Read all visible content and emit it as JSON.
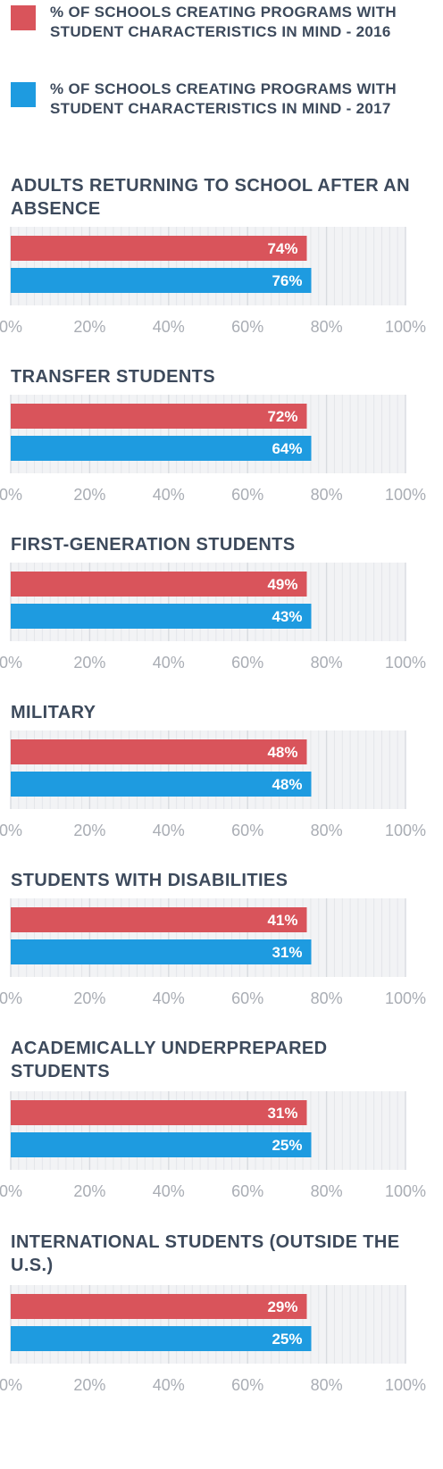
{
  "legend": [
    {
      "label": "% OF SCHOOLS CREATING PROGRAMS WITH STUDENT CHARACTERISTICS IN MIND - 2016",
      "color": "#d9545b"
    },
    {
      "label": "% OF SCHOOLS CREATING PROGRAMS WITH STUDENT CHARACTERISTICS IN MIND - 2017",
      "color": "#1e9be0"
    }
  ],
  "chart_data": [
    {
      "type": "bar",
      "orientation": "horizontal",
      "title": "ADULTS RETURNING TO SCHOOL AFTER AN ABSENCE",
      "series": [
        {
          "name": "% OF SCHOOLS CREATING PROGRAMS WITH STUDENT CHARACTERISTICS IN MIND - 2016",
          "values": [
            74
          ]
        },
        {
          "name": "% OF SCHOOLS CREATING PROGRAMS WITH STUDENT CHARACTERISTICS IN MIND - 2017",
          "values": [
            76
          ]
        }
      ],
      "data_labels": [
        "74%",
        "76%"
      ],
      "xlim": [
        0,
        100
      ],
      "ticks": [
        "0%",
        "20%",
        "40%",
        "60%",
        "80%",
        "100%"
      ]
    },
    {
      "type": "bar",
      "orientation": "horizontal",
      "title": "TRANSFER STUDENTS",
      "series": [
        {
          "name": "% OF SCHOOLS CREATING PROGRAMS WITH STUDENT CHARACTERISTICS IN MIND - 2016",
          "values": [
            72
          ]
        },
        {
          "name": "% OF SCHOOLS CREATING PROGRAMS WITH STUDENT CHARACTERISTICS IN MIND - 2017",
          "values": [
            64
          ]
        }
      ],
      "data_labels": [
        "72%",
        "64%"
      ],
      "xlim": [
        0,
        100
      ],
      "ticks": [
        "0%",
        "20%",
        "40%",
        "60%",
        "80%",
        "100%"
      ]
    },
    {
      "type": "bar",
      "orientation": "horizontal",
      "title": "FIRST-GENERATION STUDENTS",
      "series": [
        {
          "name": "% OF SCHOOLS CREATING PROGRAMS WITH STUDENT CHARACTERISTICS IN MIND - 2016",
          "values": [
            49
          ]
        },
        {
          "name": "% OF SCHOOLS CREATING PROGRAMS WITH STUDENT CHARACTERISTICS IN MIND - 2017",
          "values": [
            43
          ]
        }
      ],
      "data_labels": [
        "49%",
        "43%"
      ],
      "xlim": [
        0,
        100
      ],
      "ticks": [
        "0%",
        "20%",
        "40%",
        "60%",
        "80%",
        "100%"
      ]
    },
    {
      "type": "bar",
      "orientation": "horizontal",
      "title": "MILITARY",
      "series": [
        {
          "name": "% OF SCHOOLS CREATING PROGRAMS WITH STUDENT CHARACTERISTICS IN MIND - 2016",
          "values": [
            48
          ]
        },
        {
          "name": "% OF SCHOOLS CREATING PROGRAMS WITH STUDENT CHARACTERISTICS IN MIND - 2017",
          "values": [
            48
          ]
        }
      ],
      "data_labels": [
        "48%",
        "48%"
      ],
      "xlim": [
        0,
        100
      ],
      "ticks": [
        "0%",
        "20%",
        "40%",
        "60%",
        "80%",
        "100%"
      ]
    },
    {
      "type": "bar",
      "orientation": "horizontal",
      "title": "STUDENTS WITH DISABILITIES",
      "series": [
        {
          "name": "% OF SCHOOLS CREATING PROGRAMS WITH STUDENT CHARACTERISTICS IN MIND - 2016",
          "values": [
            41
          ]
        },
        {
          "name": "% OF SCHOOLS CREATING PROGRAMS WITH STUDENT CHARACTERISTICS IN MIND - 2017",
          "values": [
            31
          ]
        }
      ],
      "data_labels": [
        "41%",
        "31%"
      ],
      "xlim": [
        0,
        100
      ],
      "ticks": [
        "0%",
        "20%",
        "40%",
        "60%",
        "80%",
        "100%"
      ]
    },
    {
      "type": "bar",
      "orientation": "horizontal",
      "title": "ACADEMICALLY UNDERPREPARED STUDENTS",
      "series": [
        {
          "name": "% OF SCHOOLS CREATING PROGRAMS WITH STUDENT CHARACTERISTICS IN MIND - 2016",
          "values": [
            31
          ]
        },
        {
          "name": "% OF SCHOOLS CREATING PROGRAMS WITH STUDENT CHARACTERISTICS IN MIND - 2017",
          "values": [
            25
          ]
        }
      ],
      "data_labels": [
        "31%",
        "25%"
      ],
      "xlim": [
        0,
        100
      ],
      "ticks": [
        "0%",
        "20%",
        "40%",
        "60%",
        "80%",
        "100%"
      ]
    },
    {
      "type": "bar",
      "orientation": "horizontal",
      "title": "INTERNATIONAL STUDENTS (OUTSIDE THE U.S.)",
      "series": [
        {
          "name": "% OF SCHOOLS CREATING PROGRAMS WITH STUDENT CHARACTERISTICS IN MIND - 2016",
          "values": [
            29
          ]
        },
        {
          "name": "% OF SCHOOLS CREATING PROGRAMS WITH STUDENT CHARACTERISTICS IN MIND - 2017",
          "values": [
            25
          ]
        }
      ],
      "data_labels": [
        "29%",
        "25%"
      ],
      "xlim": [
        0,
        100
      ],
      "ticks": [
        "0%",
        "20%",
        "40%",
        "60%",
        "80%",
        "100%"
      ]
    }
  ]
}
